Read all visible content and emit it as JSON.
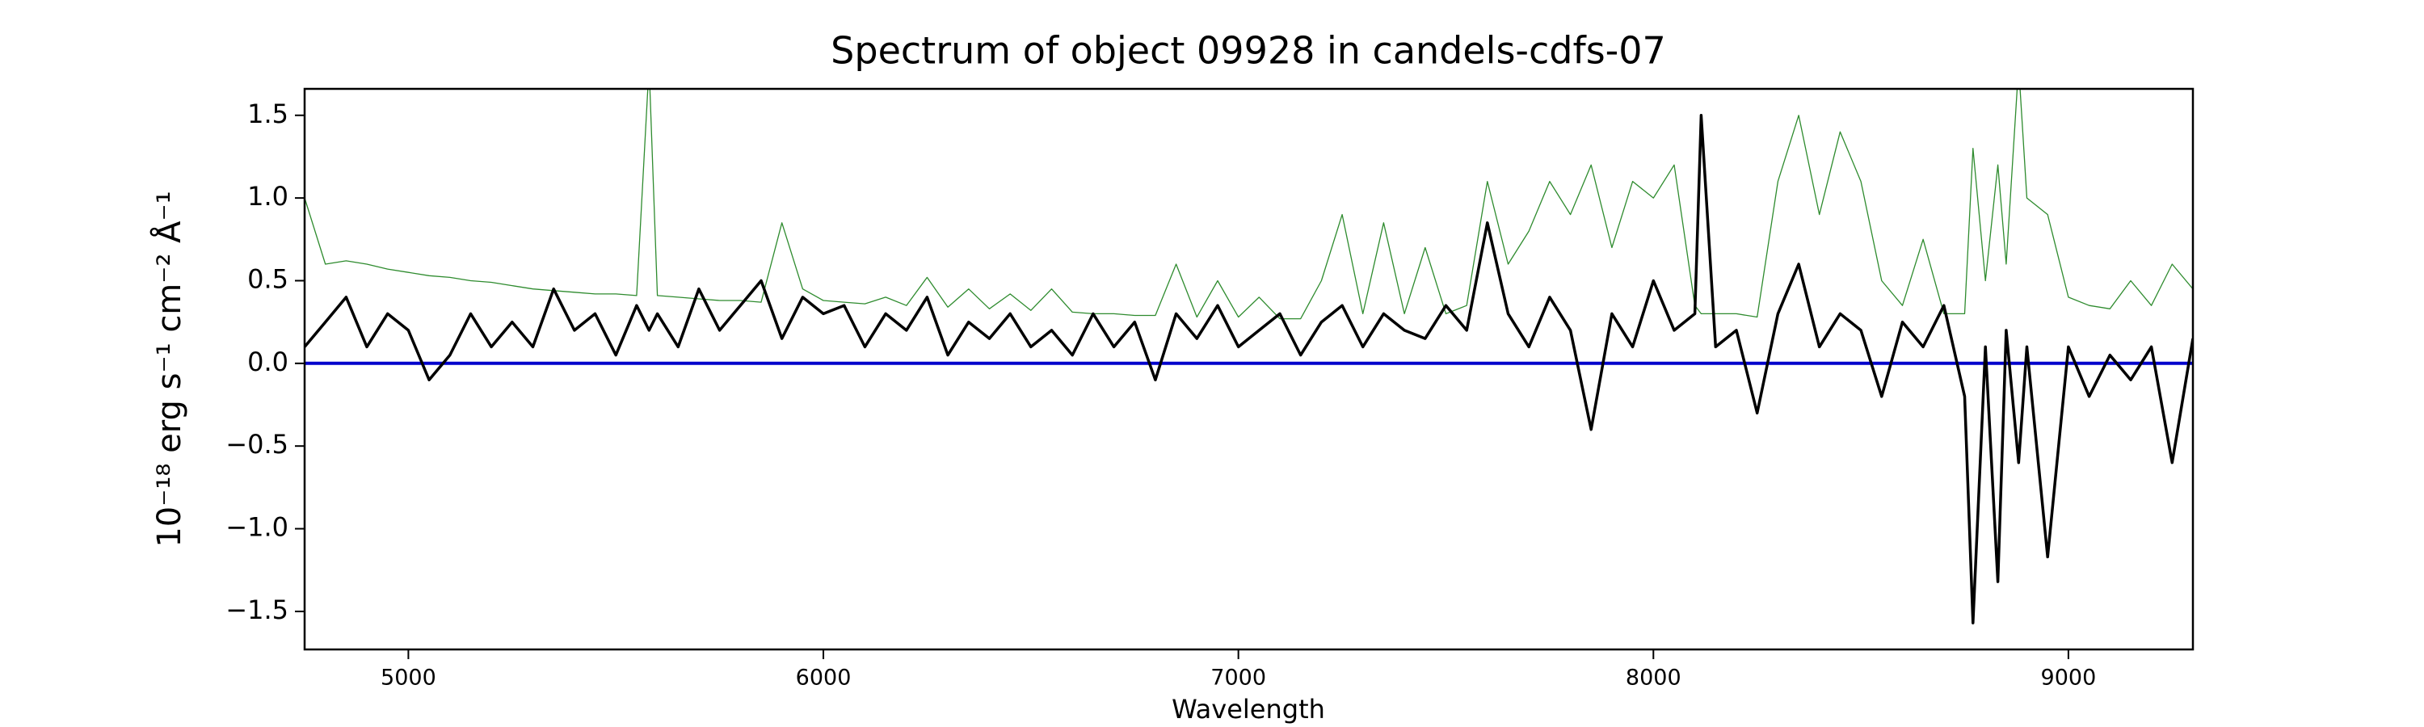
{
  "chart_data": {
    "type": "line",
    "title": "Spectrum of object 09928 in candels-cdfs-07",
    "xlabel": "Wavelength",
    "ylabel": "10⁻¹⁸ erg s⁻¹ cm⁻² Å⁻¹",
    "x": [
      4750,
      4800,
      4850,
      4900,
      4950,
      5000,
      5050,
      5100,
      5150,
      5200,
      5250,
      5300,
      5350,
      5400,
      5450,
      5500,
      5550,
      5580,
      5600,
      5650,
      5700,
      5750,
      5800,
      5850,
      5900,
      5950,
      6000,
      6050,
      6100,
      6150,
      6200,
      6250,
      6300,
      6350,
      6400,
      6450,
      6500,
      6550,
      6600,
      6650,
      6700,
      6750,
      6800,
      6850,
      6900,
      6950,
      7000,
      7050,
      7100,
      7150,
      7200,
      7250,
      7300,
      7350,
      7400,
      7450,
      7500,
      7550,
      7600,
      7650,
      7700,
      7750,
      7800,
      7850,
      7900,
      7950,
      8000,
      8050,
      8100,
      8115,
      8150,
      8200,
      8250,
      8300,
      8350,
      8400,
      8450,
      8500,
      8550,
      8600,
      8650,
      8700,
      8750,
      8770,
      8800,
      8830,
      8850,
      8880,
      8900,
      8950,
      9000,
      9050,
      9100,
      9150,
      9200,
      9250,
      9300
    ],
    "series": [
      {
        "color": "#2e8b2e",
        "width": 1.3,
        "values": [
          1.0,
          0.6,
          0.62,
          0.6,
          0.57,
          0.55,
          0.53,
          0.52,
          0.5,
          0.49,
          0.47,
          0.45,
          0.44,
          0.43,
          0.42,
          0.42,
          0.41,
          1.8,
          0.41,
          0.4,
          0.39,
          0.38,
          0.38,
          0.37,
          0.85,
          0.45,
          0.38,
          0.37,
          0.36,
          0.4,
          0.35,
          0.52,
          0.34,
          0.45,
          0.33,
          0.42,
          0.32,
          0.45,
          0.31,
          0.3,
          0.3,
          0.29,
          0.29,
          0.6,
          0.28,
          0.5,
          0.28,
          0.4,
          0.27,
          0.27,
          0.5,
          0.9,
          0.3,
          0.85,
          0.3,
          0.7,
          0.3,
          0.35,
          1.1,
          0.6,
          0.8,
          1.1,
          0.9,
          1.2,
          0.7,
          1.1,
          1.0,
          1.2,
          0.35,
          0.3,
          0.3,
          0.3,
          0.28,
          1.1,
          1.5,
          0.9,
          1.4,
          1.1,
          0.5,
          0.35,
          0.75,
          0.3,
          0.3,
          1.3,
          0.5,
          1.2,
          0.6,
          1.8,
          1.0,
          0.9,
          0.4,
          0.35,
          0.33,
          0.5,
          0.35,
          0.6,
          0.45
        ]
      },
      {
        "color": "#0000cc",
        "width": 4,
        "values": [
          0,
          0,
          0,
          0,
          0,
          0,
          0,
          0,
          0,
          0,
          0,
          0,
          0,
          0,
          0,
          0,
          0,
          0,
          0,
          0,
          0,
          0,
          0,
          0,
          0,
          0,
          0,
          0,
          0,
          0,
          0,
          0,
          0,
          0,
          0,
          0,
          0,
          0,
          0,
          0,
          0,
          0,
          0,
          0,
          0,
          0,
          0,
          0,
          0,
          0,
          0,
          0,
          0,
          0,
          0,
          0,
          0,
          0,
          0,
          0,
          0,
          0,
          0,
          0,
          0,
          0,
          0,
          0,
          0,
          0,
          0,
          0,
          0,
          0,
          0,
          0,
          0,
          0,
          0,
          0,
          0,
          0,
          0,
          0,
          0,
          0,
          0,
          0,
          0,
          0,
          0,
          0,
          0,
          0,
          0,
          0,
          0
        ]
      },
      {
        "color": "#000000",
        "width": 3.5,
        "values": [
          0.1,
          0.25,
          0.4,
          0.1,
          0.3,
          0.2,
          -0.1,
          0.05,
          0.3,
          0.1,
          0.25,
          0.1,
          0.45,
          0.2,
          0.3,
          0.05,
          0.35,
          0.2,
          0.3,
          0.1,
          0.45,
          0.2,
          0.35,
          0.5,
          0.15,
          0.4,
          0.3,
          0.35,
          0.1,
          0.3,
          0.2,
          0.4,
          0.05,
          0.25,
          0.15,
          0.3,
          0.1,
          0.2,
          0.05,
          0.3,
          0.1,
          0.25,
          -0.1,
          0.3,
          0.15,
          0.35,
          0.1,
          0.2,
          0.3,
          0.05,
          0.25,
          0.35,
          0.1,
          0.3,
          0.2,
          0.15,
          0.35,
          0.2,
          0.85,
          0.3,
          0.1,
          0.4,
          0.2,
          -0.4,
          0.3,
          0.1,
          0.5,
          0.2,
          0.3,
          1.5,
          0.1,
          0.2,
          -0.3,
          0.3,
          0.6,
          0.1,
          0.3,
          0.2,
          -0.2,
          0.25,
          0.1,
          0.35,
          -0.2,
          -1.57,
          0.1,
          -1.32,
          0.2,
          -0.6,
          0.1,
          -1.17,
          0.1,
          -0.2,
          0.05,
          -0.1,
          0.1,
          -0.6,
          0.15
        ]
      }
    ],
    "xlim": [
      4750,
      9300
    ],
    "xticks": [
      5000,
      6000,
      7000,
      8000,
      9000
    ],
    "ylim": [
      -1.73,
      1.66
    ],
    "yticks": [
      {
        "value": -1.5,
        "label": "−1.5"
      },
      {
        "value": -1.0,
        "label": "−1.0"
      },
      {
        "value": -0.5,
        "label": "−0.5"
      },
      {
        "value": 0.0,
        "label": "0.0"
      },
      {
        "value": 0.5,
        "label": "0.5"
      },
      {
        "value": 1.0,
        "label": "1.0"
      },
      {
        "value": 1.5,
        "label": "1.5"
      }
    ]
  }
}
